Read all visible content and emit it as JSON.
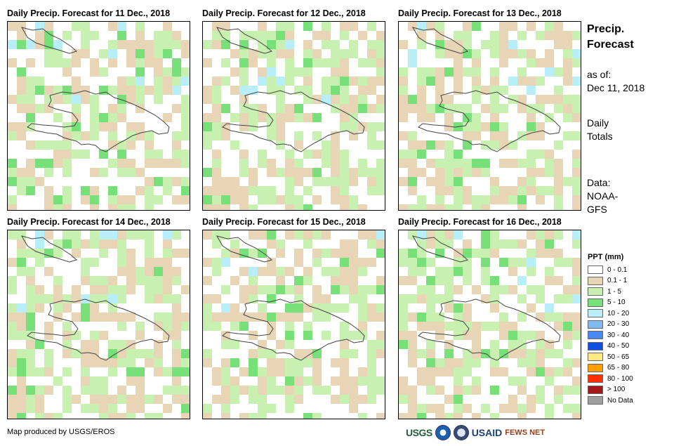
{
  "panels": [
    {
      "title": "Daily Precip. Forecast for 11 Dec., 2018"
    },
    {
      "title": "Daily Precip. Forecast for 12 Dec., 2018"
    },
    {
      "title": "Daily Precip. Forecast for 13 Dec., 2018"
    },
    {
      "title": "Daily Precip. Forecast for 14 Dec., 2018"
    },
    {
      "title": "Daily Precip. Forecast for 15 Dec., 2018"
    },
    {
      "title": "Daily Precip. Forecast for 16 Dec., 2018"
    }
  ],
  "side": {
    "title_line1": "Precip.",
    "title_line2": "Forecast",
    "asof_label": "as of:",
    "asof_date": "Dec 11, 2018",
    "totals_line1": "Daily",
    "totals_line2": "Totals",
    "data_line1": "Data:",
    "data_line2": "NOAA-",
    "data_line3": "GFS"
  },
  "legend": {
    "title": "PPT (mm)",
    "items": [
      {
        "label": "0 - 0.1",
        "color": "#ffffff"
      },
      {
        "label": "0.1 - 1",
        "color": "#e8d5b5"
      },
      {
        "label": "1 - 5",
        "color": "#c8f0b0"
      },
      {
        "label": "5 - 10",
        "color": "#78e078"
      },
      {
        "label": "10 - 20",
        "color": "#b8eef8"
      },
      {
        "label": "20 - 30",
        "color": "#80b8f0"
      },
      {
        "label": "30 - 40",
        "color": "#4888f0"
      },
      {
        "label": "40 - 50",
        "color": "#1050e0"
      },
      {
        "label": "50 - 65",
        "color": "#ffe880"
      },
      {
        "label": "65 - 80",
        "color": "#ffa000"
      },
      {
        "label": "80 - 100",
        "color": "#ff3000"
      },
      {
        "label": "> 100",
        "color": "#a01818"
      },
      {
        "label": "No Data",
        "color": "#a0a0a0"
      }
    ]
  },
  "credit": "Map produced by USGS/EROS",
  "logos": {
    "usgs": "USGS",
    "noaa_icon": "noaa-logo-icon",
    "dos_icon": "state-seal-icon",
    "usaid": "USAID",
    "fews": "FEWS NET"
  }
}
